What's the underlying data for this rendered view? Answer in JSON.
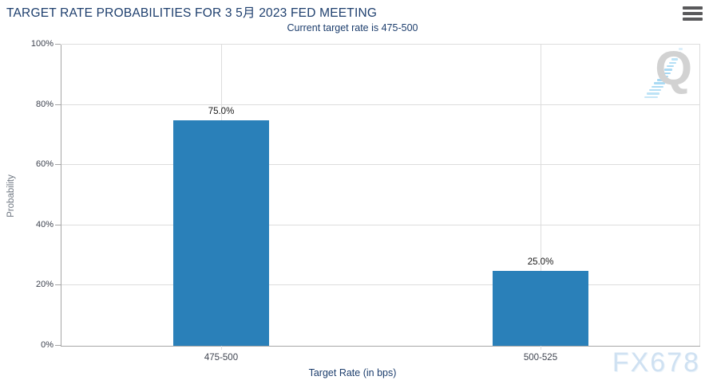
{
  "chart_data": {
    "type": "bar",
    "title": "TARGET RATE PROBABILITIES FOR 3 5月 2023 FED MEETING",
    "subtitle": "Current target rate is 475-500",
    "categories": [
      "475-500",
      "500-525"
    ],
    "values": [
      75.0,
      25.0
    ],
    "value_labels": [
      "75.0%",
      "25.0%"
    ],
    "xlabel": "Target Rate (in bps)",
    "ylabel": "Probability",
    "ylim": [
      0,
      100
    ],
    "yticks": [
      0,
      20,
      40,
      60,
      80,
      100
    ],
    "ytick_suffix": "%",
    "grid": true,
    "legend": false
  },
  "watermark": "FX678",
  "logo_letter": "Q",
  "colors": {
    "title": "#1d3e6d",
    "bar": "#2a80b9",
    "grid": "#dddddd",
    "axis": "#a6a6a6",
    "tick_label": "#3f4450",
    "ylabel": "#6e7681",
    "watermark": "#cfe1f2",
    "menu": "#59595b",
    "logo_gray": "#d2d2d2",
    "logo_blue": "#a5d8f3"
  }
}
